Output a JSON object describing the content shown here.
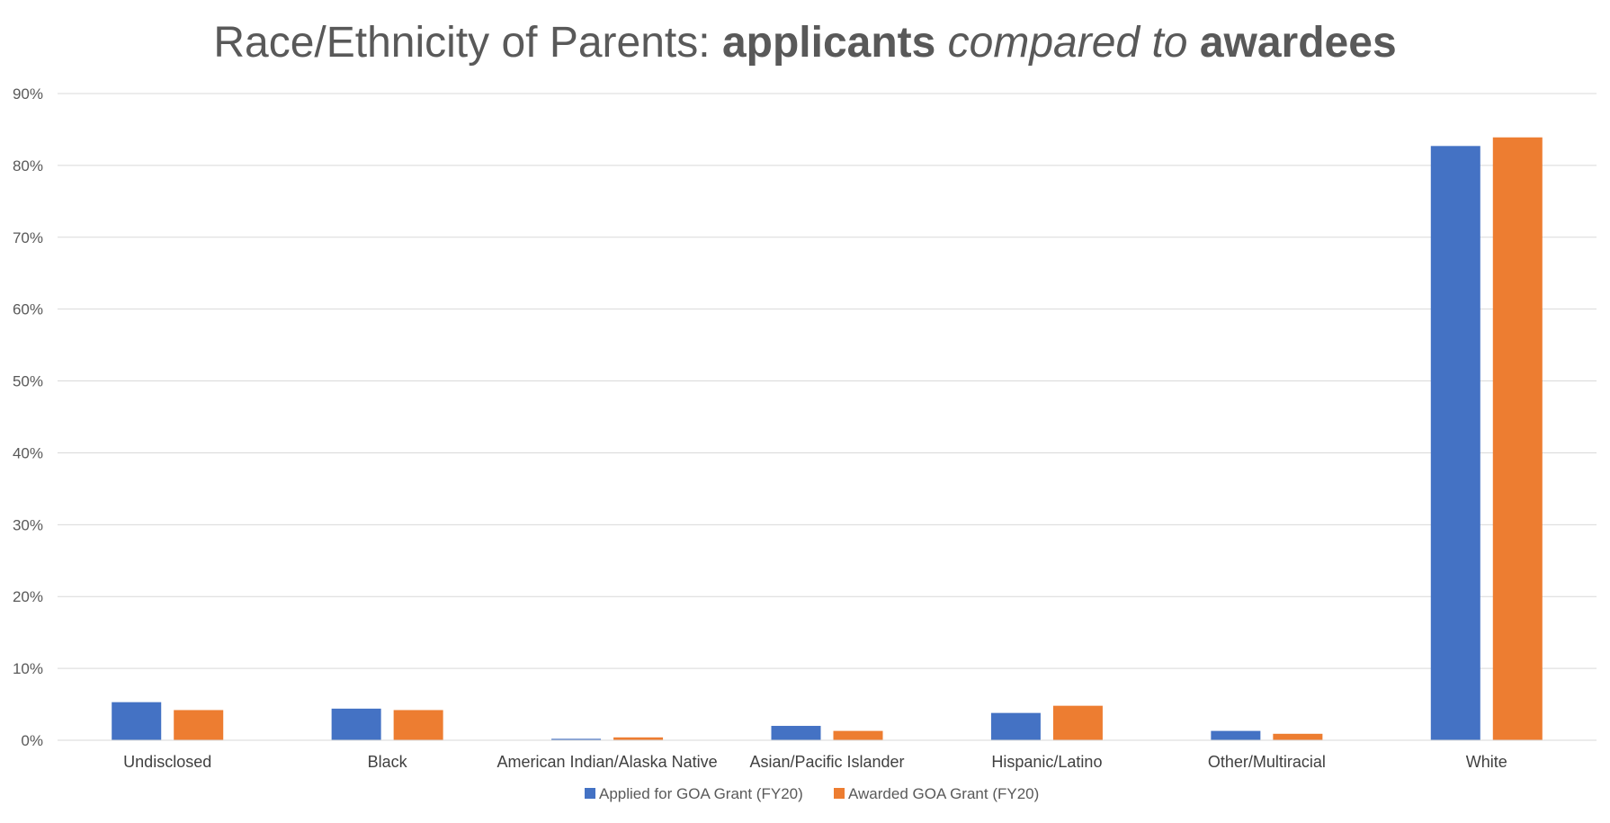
{
  "chart_data": {
    "type": "bar",
    "title": {
      "part1": "Race/Ethnicity of Parents: ",
      "part2": "applicants",
      "part3": " compared to ",
      "part4": "awardees"
    },
    "categories": [
      "Undisclosed",
      "Black",
      "American Indian/Alaska Native",
      "Asian/Pacific Islander",
      "Hispanic/Latino",
      "Other/Multiracial",
      "White"
    ],
    "series": [
      {
        "name": "Applied for GOA Grant (FY20)",
        "color": "#4472C4",
        "values": [
          5.3,
          4.4,
          0.2,
          2.0,
          3.8,
          1.3,
          82.7
        ]
      },
      {
        "name": "Awarded GOA Grant (FY20)",
        "color": "#ED7D31",
        "values": [
          4.2,
          4.2,
          0.4,
          1.3,
          4.8,
          0.9,
          83.9
        ]
      }
    ],
    "xlabel": "",
    "ylabel": "",
    "ylim": [
      0,
      90
    ],
    "yticks": [
      0,
      10,
      20,
      30,
      40,
      50,
      60,
      70,
      80,
      90
    ],
    "ytick_labels": [
      "0%",
      "10%",
      "20%",
      "30%",
      "40%",
      "50%",
      "60%",
      "70%",
      "80%",
      "90%"
    ],
    "grid": true,
    "gridline_color": "#D9D9D9",
    "legend_position": "bottom"
  }
}
